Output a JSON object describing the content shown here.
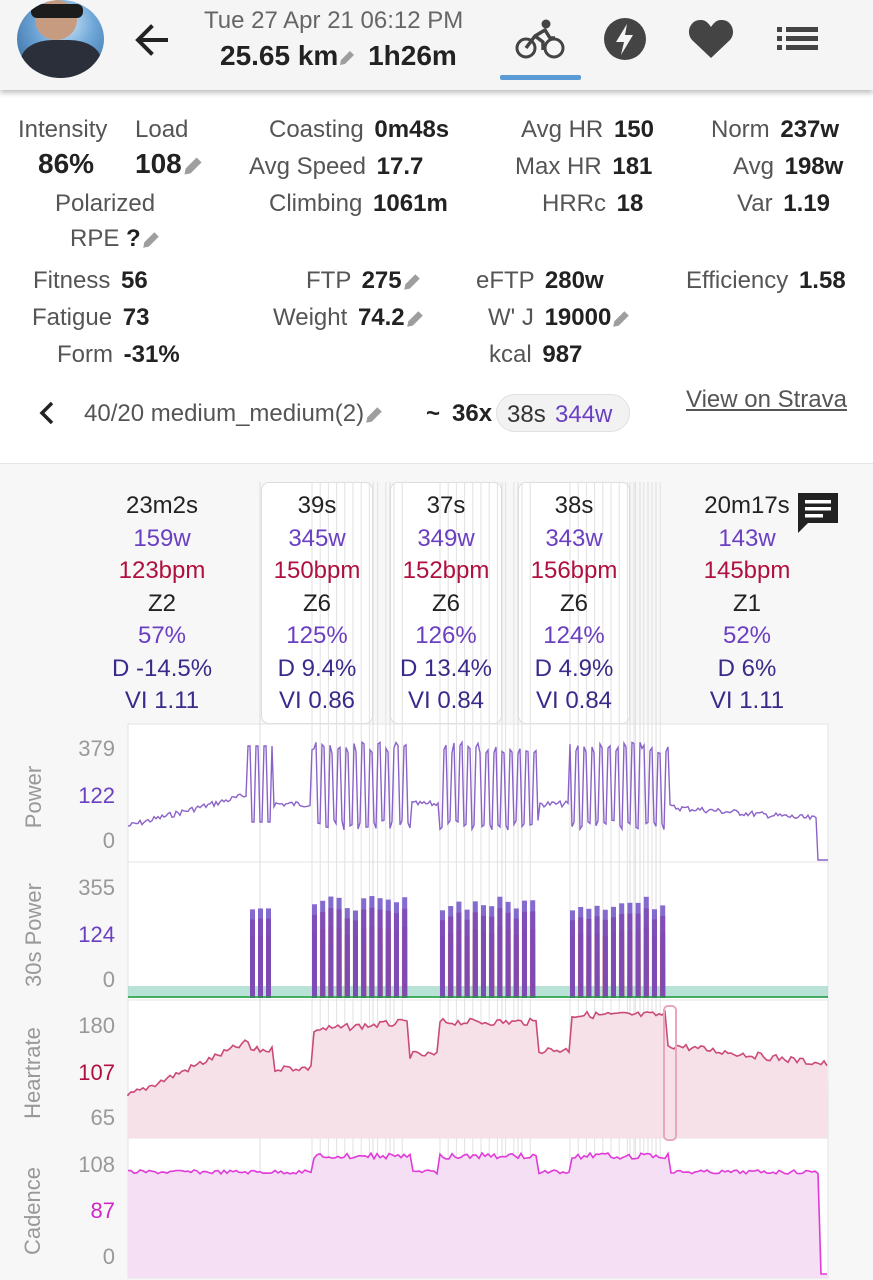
{
  "header": {
    "date": "Tue 27 Apr 21 06:12 PM",
    "distance": "25.65 km",
    "duration": "1h26m",
    "tabs": [
      "bike-icon",
      "lightning-icon",
      "heart-icon",
      "list-icon"
    ],
    "active_tab": "bike-icon",
    "accent": "#5b9bd5"
  },
  "stats": {
    "intensity_label": "Intensity",
    "intensity_value": "86%",
    "load_label": "Load",
    "load_value": "108",
    "polarized": "Polarized",
    "rpe_label": "RPE",
    "rpe_value": "?",
    "coasting_label": "Coasting",
    "coasting_value": "0m48s",
    "avg_speed_label": "Avg Speed",
    "avg_speed_value": "17.7",
    "climbing_label": "Climbing",
    "climbing_value": "1061m",
    "avg_hr_label": "Avg HR",
    "avg_hr_value": "150",
    "max_hr_label": "Max HR",
    "max_hr_value": "181",
    "hrrc_label": "HRRc",
    "hrrc_value": "18",
    "norm_label": "Norm",
    "norm_value": "237w",
    "avg_label": "Avg",
    "avg_value": "198w",
    "var_label": "Var",
    "var_value": "1.19",
    "fitness_label": "Fitness",
    "fitness_value": "56",
    "fatigue_label": "Fatigue",
    "fatigue_value": "73",
    "form_label": "Form",
    "form_value": "-31%",
    "ftp_label": "FTP",
    "ftp_value": "275",
    "weight_label": "Weight",
    "weight_value": "74.2",
    "eftp_label": "eFTP",
    "eftp_value": "280w",
    "wprime_label": "W' J",
    "wprime_value": "19000",
    "kcal_label": "kcal",
    "kcal_value": "987",
    "efficiency_label": "Efficiency",
    "efficiency_value": "1.58"
  },
  "nav": {
    "interval_name": "40/20 medium_medium(2)",
    "tilde": "~",
    "count": "36x",
    "chip_time": "38s",
    "chip_power": "344w",
    "strava_link": "View on Strava"
  },
  "intervals": [
    {
      "time": "23m2s",
      "watts": "159w",
      "bpm": "123bpm",
      "zone": "Z2",
      "pct": "57%",
      "decoupling": "D -14.5%",
      "vi": "VI 1.11"
    },
    {
      "time": "39s",
      "watts": "345w",
      "bpm": "150bpm",
      "zone": "Z6",
      "pct": "125%",
      "decoupling": "D 9.4%",
      "vi": "VI 0.86"
    },
    {
      "time": "37s",
      "watts": "349w",
      "bpm": "152bpm",
      "zone": "Z6",
      "pct": "126%",
      "decoupling": "D 13.4%",
      "vi": "VI 0.84"
    },
    {
      "time": "38s",
      "watts": "343w",
      "bpm": "156bpm",
      "zone": "Z6",
      "pct": "124%",
      "decoupling": "D 4.9%",
      "vi": "VI 0.84"
    },
    {
      "time": "20m17s",
      "watts": "143w",
      "bpm": "145bpm",
      "zone": "Z1",
      "pct": "52%",
      "decoupling": "D 6%",
      "vi": "VI 1.11"
    }
  ],
  "charts": {
    "power": {
      "title": "Power",
      "ticks": [
        "379",
        "122",
        "0"
      ],
      "color": "#8a63c9"
    },
    "power30": {
      "title": "30s Power",
      "ticks": [
        "355",
        "124",
        "0"
      ],
      "color": "#1e9b3a"
    },
    "heartrate": {
      "title": "Heartrate",
      "ticks": [
        "180",
        "107",
        "65"
      ],
      "color": "#cc4a7a"
    },
    "cadence": {
      "title": "Cadence",
      "ticks": [
        "108",
        "87",
        "0"
      ],
      "color": "#e03ad8"
    }
  }
}
